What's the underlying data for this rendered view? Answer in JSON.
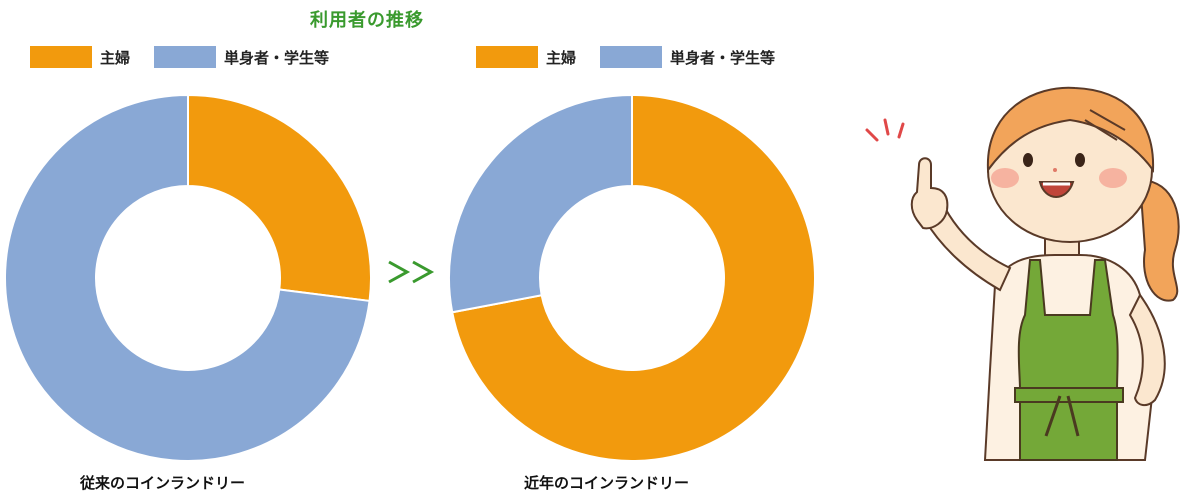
{
  "title": "利用者の推移",
  "colors": {
    "housewife": "#f29a0d",
    "single": "#89a8d5",
    "accent": "#3a9a2e"
  },
  "legend": [
    {
      "label": "主婦",
      "color": "#f29a0d"
    },
    {
      "label": "単身者・学生等",
      "color": "#89a8d5"
    }
  ],
  "captions": {
    "left": "従来のコインランドリー",
    "right": "近年のコインランドリー"
  },
  "arrow_text": ">>",
  "chart_data": [
    {
      "type": "pie",
      "title": "従来のコインランドリー",
      "categories": [
        "主婦",
        "単身者・学生等"
      ],
      "values": [
        27,
        73
      ]
    },
    {
      "type": "pie",
      "title": "近年のコインランドリー",
      "categories": [
        "主婦",
        "単身者・学生等"
      ],
      "values": [
        72,
        28
      ]
    }
  ]
}
